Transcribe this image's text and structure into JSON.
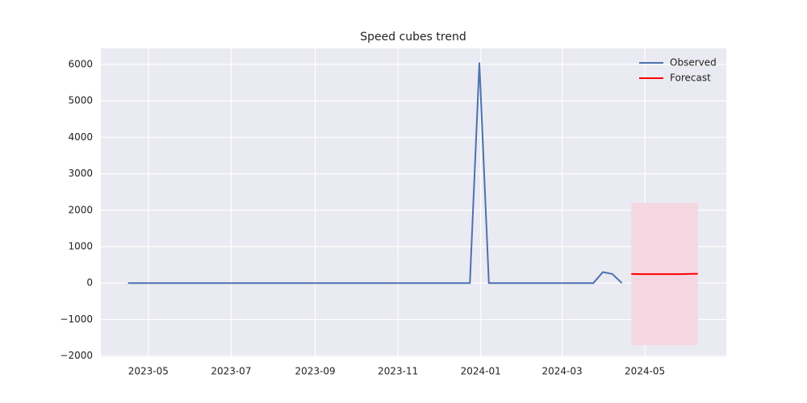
{
  "chart_data": {
    "type": "line",
    "title": "Speed cubes trend",
    "series": [
      {
        "name": "Observed",
        "color": "#4c72b0",
        "x": [
          "2023-04-16",
          "2023-12-24",
          "2023-12-31",
          "2024-01-07",
          "2024-03-24",
          "2024-03-31",
          "2024-04-07",
          "2024-04-14"
        ],
        "values": [
          0,
          0,
          6050,
          0,
          0,
          300,
          250,
          0
        ]
      },
      {
        "name": "Forecast",
        "color": "#ff0000",
        "x": [
          "2024-04-21",
          "2024-04-28",
          "2024-05-05",
          "2024-05-12",
          "2024-05-19",
          "2024-05-26",
          "2024-06-02",
          "2024-06-09"
        ],
        "values": [
          250,
          245,
          245,
          245,
          245,
          245,
          250,
          255
        ],
        "lower": [
          -1700,
          -1700,
          -1700,
          -1700,
          -1700,
          -1700,
          -1700,
          -1700
        ],
        "upper": [
          2200,
          2200,
          2200,
          2200,
          2200,
          2200,
          2200,
          2200
        ],
        "band_color": "#f4d7e1"
      }
    ],
    "xlim": [
      "2023-03-27",
      "2024-06-30"
    ],
    "xticks": [
      {
        "value": "2023-05-01",
        "label": "2023-05"
      },
      {
        "value": "2023-07-01",
        "label": "2023-07"
      },
      {
        "value": "2023-09-01",
        "label": "2023-09"
      },
      {
        "value": "2023-11-01",
        "label": "2023-11"
      },
      {
        "value": "2024-01-01",
        "label": "2024-01"
      },
      {
        "value": "2024-03-01",
        "label": "2024-03"
      },
      {
        "value": "2024-05-01",
        "label": "2024-05"
      }
    ],
    "ylim": [
      -2030,
      6440
    ],
    "yticks": [
      {
        "value": -2000,
        "label": "−2000"
      },
      {
        "value": -1000,
        "label": "−1000"
      },
      0,
      1000,
      2000,
      3000,
      4000,
      5000,
      6000
    ],
    "grid": true,
    "legend": "upper right"
  }
}
